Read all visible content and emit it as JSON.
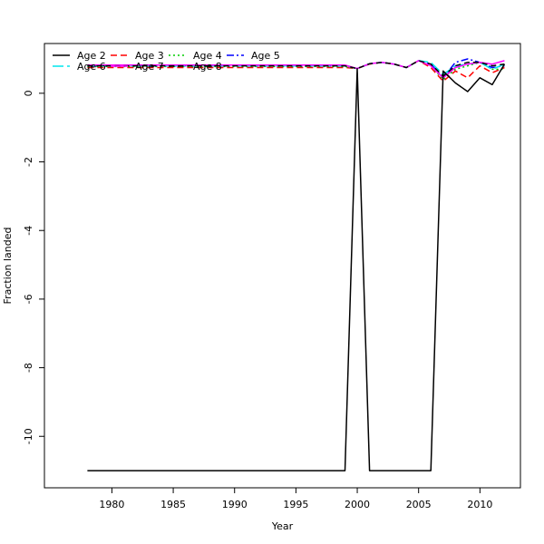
{
  "chart_data": {
    "type": "line",
    "xlabel": "Year",
    "ylabel": "Fraction landed",
    "xlim": [
      1974.5,
      2013.3
    ],
    "ylim": [
      -11.5,
      1.45
    ],
    "x_ticks": [
      1980,
      1985,
      1990,
      1995,
      2000,
      2005,
      2010
    ],
    "y_ticks": [
      0,
      -2,
      -4,
      -6,
      -8,
      -10
    ],
    "grid": false,
    "legend_position": "top-left",
    "x": [
      1978,
      1979,
      1980,
      1981,
      1982,
      1983,
      1984,
      1985,
      1986,
      1987,
      1988,
      1989,
      1990,
      1991,
      1992,
      1993,
      1994,
      1995,
      1996,
      1997,
      1998,
      1999,
      2000,
      2001,
      2002,
      2003,
      2004,
      2005,
      2006,
      2007,
      2008,
      2009,
      2010,
      2011,
      2012
    ],
    "series": [
      {
        "name": "Age 2",
        "color": "#000000",
        "dash": "",
        "width": 1.5,
        "values": [
          -11,
          -11,
          -11,
          -11,
          -11,
          -11,
          -11,
          -11,
          -11,
          -11,
          -11,
          -11,
          -11,
          -11,
          -11,
          -11,
          -11,
          -11,
          -11,
          -11,
          -11,
          -11,
          0.72,
          -11,
          -11,
          -11,
          -11,
          -11,
          -11,
          0.65,
          0.3,
          0.05,
          0.45,
          0.25,
          0.85
        ]
      },
      {
        "name": "Age 3",
        "color": "#ff0000",
        "dash": "7,4",
        "width": 1.5,
        "values": [
          0.75,
          0.75,
          0.75,
          0.75,
          0.75,
          0.75,
          0.75,
          0.75,
          0.75,
          0.75,
          0.75,
          0.75,
          0.75,
          0.75,
          0.75,
          0.75,
          0.75,
          0.75,
          0.75,
          0.75,
          0.75,
          0.75,
          0.72,
          0.85,
          0.9,
          0.85,
          0.75,
          0.95,
          0.75,
          0.35,
          0.65,
          0.45,
          0.8,
          0.6,
          0.75
        ]
      },
      {
        "name": "Age 4",
        "color": "#00cd00",
        "dash": "2,3",
        "width": 1.5,
        "values": [
          0.78,
          0.78,
          0.78,
          0.78,
          0.78,
          0.78,
          0.78,
          0.78,
          0.78,
          0.78,
          0.78,
          0.78,
          0.78,
          0.78,
          0.78,
          0.78,
          0.78,
          0.78,
          0.78,
          0.78,
          0.78,
          0.78,
          0.72,
          0.86,
          0.9,
          0.85,
          0.75,
          0.95,
          0.8,
          0.4,
          0.7,
          0.8,
          0.9,
          0.7,
          0.7
        ]
      },
      {
        "name": "Age 5",
        "color": "#0000ff",
        "dash": "8,3,2,3",
        "width": 1.5,
        "values": [
          0.8,
          0.8,
          0.8,
          0.8,
          0.8,
          0.8,
          0.8,
          0.8,
          0.8,
          0.8,
          0.8,
          0.8,
          0.8,
          0.8,
          0.8,
          0.8,
          0.8,
          0.8,
          0.8,
          0.8,
          0.8,
          0.8,
          0.72,
          0.86,
          0.9,
          0.85,
          0.75,
          0.95,
          0.85,
          0.45,
          0.9,
          1.0,
          0.9,
          0.75,
          0.8
        ]
      },
      {
        "name": "Age 6",
        "color": "#00e5ee",
        "dash": "12,4",
        "width": 1.5,
        "values": [
          0.8,
          0.8,
          0.8,
          0.8,
          0.8,
          0.8,
          0.8,
          0.8,
          0.8,
          0.8,
          0.8,
          0.8,
          0.8,
          0.8,
          0.8,
          0.8,
          0.8,
          0.8,
          0.8,
          0.8,
          0.8,
          0.8,
          0.72,
          0.86,
          0.9,
          0.85,
          0.75,
          0.95,
          0.9,
          0.55,
          0.8,
          0.85,
          0.9,
          0.7,
          0.85
        ]
      },
      {
        "name": "Age 7",
        "color": "#ff00ff",
        "dash": "",
        "width": 1.5,
        "values": [
          0.82,
          0.82,
          0.82,
          0.82,
          0.82,
          0.82,
          0.82,
          0.82,
          0.82,
          0.82,
          0.82,
          0.82,
          0.82,
          0.82,
          0.82,
          0.82,
          0.82,
          0.82,
          0.82,
          0.82,
          0.82,
          0.82,
          0.72,
          0.86,
          0.9,
          0.85,
          0.75,
          0.95,
          0.8,
          0.45,
          0.75,
          0.85,
          0.9,
          0.85,
          0.95
        ]
      },
      {
        "name": "Age 8",
        "color": "#000000",
        "dash": "6,4",
        "width": 1.5,
        "values": [
          0.8,
          0.8,
          0.8,
          0.8,
          0.8,
          0.8,
          0.8,
          0.8,
          0.8,
          0.8,
          0.8,
          0.8,
          0.8,
          0.8,
          0.8,
          0.8,
          0.8,
          0.8,
          0.8,
          0.8,
          0.8,
          0.8,
          0.72,
          0.86,
          0.9,
          0.85,
          0.75,
          0.95,
          0.85,
          0.5,
          0.8,
          0.9,
          0.9,
          0.8,
          0.85
        ]
      }
    ]
  }
}
